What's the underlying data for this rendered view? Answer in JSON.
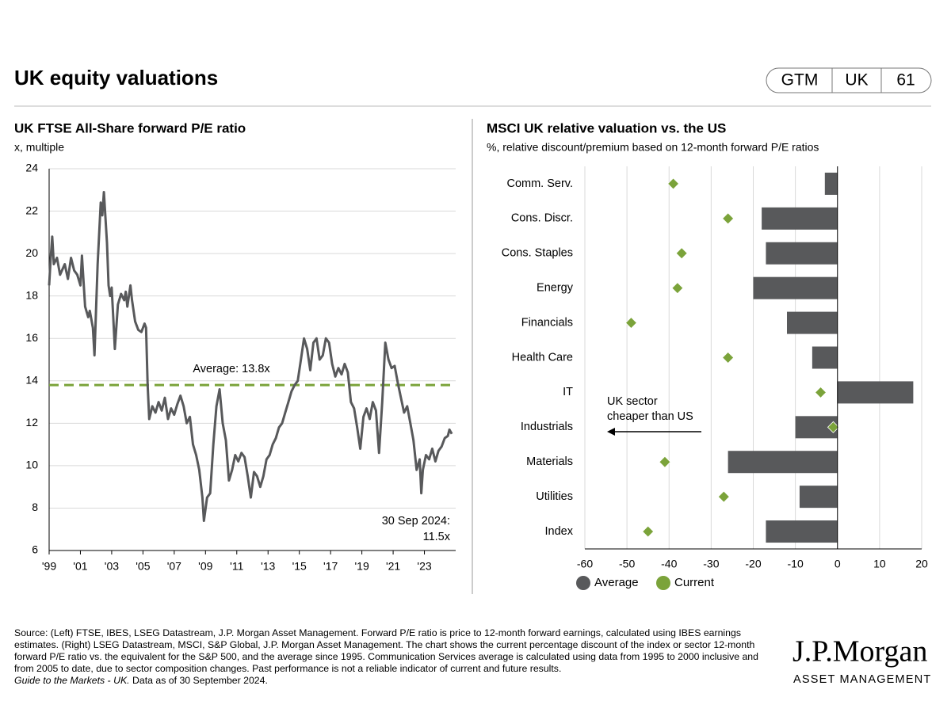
{
  "header": {
    "title": "UK equity valuations",
    "badge": [
      "GTM",
      "UK",
      "61"
    ]
  },
  "chart_data": [
    {
      "type": "line",
      "title": "UK FTSE All-Share forward P/E ratio",
      "subtitle": "x, multiple",
      "color": "#58595b",
      "x": [
        1999.0,
        1999.1,
        1999.2,
        1999.3,
        1999.5,
        1999.7,
        2000.0,
        2000.2,
        2000.4,
        2000.6,
        2000.8,
        2001.0,
        2001.1,
        2001.3,
        2001.5,
        2001.6,
        2001.8,
        2001.9,
        2002.1,
        2002.3,
        2002.4,
        2002.5,
        2002.7,
        2002.8,
        2002.9,
        2003.0,
        2003.1,
        2003.2,
        2003.4,
        2003.6,
        2003.8,
        2003.9,
        2004.0,
        2004.2,
        2004.3,
        2004.5,
        2004.7,
        2004.9,
        2005.1,
        2005.2,
        2005.3,
        2005.4,
        2005.6,
        2005.8,
        2006.0,
        2006.2,
        2006.4,
        2006.6,
        2006.8,
        2007.0,
        2007.2,
        2007.4,
        2007.6,
        2007.8,
        2008.0,
        2008.2,
        2008.4,
        2008.6,
        2008.8,
        2008.9,
        2009.1,
        2009.3,
        2009.5,
        2009.7,
        2009.9,
        2010.1,
        2010.3,
        2010.5,
        2010.7,
        2010.9,
        2011.1,
        2011.3,
        2011.5,
        2011.7,
        2011.9,
        2012.1,
        2012.3,
        2012.5,
        2012.7,
        2012.9,
        2013.1,
        2013.3,
        2013.5,
        2013.7,
        2013.9,
        2014.1,
        2014.3,
        2014.5,
        2014.7,
        2014.9,
        2015.1,
        2015.3,
        2015.5,
        2015.7,
        2015.9,
        2016.1,
        2016.3,
        2016.5,
        2016.7,
        2016.9,
        2017.1,
        2017.3,
        2017.5,
        2017.7,
        2017.9,
        2018.1,
        2018.3,
        2018.5,
        2018.7,
        2018.9,
        2019.1,
        2019.3,
        2019.5,
        2019.7,
        2019.9,
        2020.1,
        2020.3,
        2020.5,
        2020.7,
        2020.9,
        2021.1,
        2021.3,
        2021.5,
        2021.7,
        2021.9,
        2022.1,
        2022.3,
        2022.5,
        2022.7,
        2022.8,
        2022.9,
        2023.1,
        2023.3,
        2023.5,
        2023.7,
        2023.9,
        2024.1,
        2024.3,
        2024.5,
        2024.6,
        2024.75
      ],
      "values": [
        18.5,
        19.8,
        20.8,
        19.5,
        19.8,
        19.0,
        19.5,
        18.8,
        19.8,
        19.2,
        19.0,
        18.5,
        19.9,
        17.5,
        17.0,
        17.3,
        16.5,
        15.2,
        19.5,
        22.4,
        21.8,
        22.9,
        20.5,
        18.5,
        18.0,
        18.4,
        17.0,
        15.5,
        17.6,
        18.1,
        17.8,
        18.2,
        17.5,
        18.5,
        17.8,
        16.8,
        16.4,
        16.3,
        16.7,
        16.5,
        13.8,
        12.2,
        12.8,
        12.5,
        13.0,
        12.6,
        13.2,
        12.2,
        12.7,
        12.4,
        12.9,
        13.3,
        12.8,
        12.0,
        12.3,
        11.0,
        10.5,
        9.8,
        8.5,
        7.4,
        8.5,
        8.7,
        11.0,
        12.8,
        13.6,
        12.0,
        11.2,
        9.3,
        9.8,
        10.5,
        10.2,
        10.6,
        10.4,
        9.5,
        8.5,
        9.7,
        9.5,
        9.0,
        9.5,
        10.3,
        10.5,
        11.0,
        11.3,
        11.8,
        12.0,
        12.5,
        13.0,
        13.5,
        13.8,
        14.0,
        15.0,
        16.0,
        15.5,
        14.5,
        15.8,
        16.0,
        15.0,
        15.2,
        16.0,
        15.8,
        14.8,
        14.2,
        14.6,
        14.3,
        14.8,
        14.4,
        13.0,
        12.7,
        11.8,
        10.8,
        12.3,
        12.7,
        12.2,
        13.0,
        12.6,
        10.6,
        13.0,
        15.8,
        15.0,
        14.6,
        14.7,
        13.9,
        13.2,
        12.5,
        12.8,
        12.0,
        11.2,
        9.8,
        10.3,
        8.7,
        9.8,
        10.5,
        10.3,
        10.8,
        10.2,
        10.7,
        10.9,
        11.3,
        11.4,
        11.7,
        11.5
      ],
      "xlim": [
        1999,
        2025
      ],
      "xticks": [
        {
          "value": 1999,
          "label": "'99"
        },
        {
          "value": 2001,
          "label": "'01"
        },
        {
          "value": 2003,
          "label": "'03"
        },
        {
          "value": 2005,
          "label": "'05"
        },
        {
          "value": 2007,
          "label": "'07"
        },
        {
          "value": 2009,
          "label": "'09"
        },
        {
          "value": 2011,
          "label": "'11"
        },
        {
          "value": 2013,
          "label": "'13"
        },
        {
          "value": 2015,
          "label": "'15"
        },
        {
          "value": 2017,
          "label": "'17"
        },
        {
          "value": 2019,
          "label": "'19"
        },
        {
          "value": 2021,
          "label": "'21"
        },
        {
          "value": 2023,
          "label": "'23"
        }
      ],
      "ylim": [
        6,
        24
      ],
      "yticks": [
        6,
        8,
        10,
        12,
        14,
        16,
        18,
        20,
        22,
        24
      ],
      "grid": true,
      "average": {
        "value": 13.8,
        "label": "Average: 13.8x",
        "color": "#7ba33a"
      },
      "annotation": {
        "x": 2024.75,
        "y": 11.5,
        "lines": [
          "30 Sep 2024:",
          "11.5x"
        ]
      }
    },
    {
      "type": "bar",
      "orientation": "horizontal",
      "title": "MSCI UK relative valuation vs. the US",
      "subtitle": "%, relative discount/premium based on 12-month forward P/E ratios",
      "categories": [
        "Comm. Serv.",
        "Cons. Discr.",
        "Cons. Staples",
        "Energy",
        "Financials",
        "Health Care",
        "IT",
        "Industrials",
        "Materials",
        "Utilities",
        "Index"
      ],
      "series": [
        {
          "name": "Average",
          "color": "#58595b",
          "marker": "bar",
          "values": [
            -3,
            -18,
            -17,
            -20,
            -12,
            -6,
            18,
            -10,
            -26,
            -9,
            -17
          ]
        },
        {
          "name": "Current",
          "color": "#7ba33a",
          "marker": "diamond",
          "values": [
            -39,
            -26,
            -37,
            -38,
            -49,
            -26,
            -4,
            -1,
            -41,
            -27,
            -45
          ]
        }
      ],
      "xlim": [
        -60,
        20
      ],
      "xticks": [
        -60,
        -50,
        -40,
        -30,
        -20,
        -10,
        0,
        10,
        20
      ],
      "grid": true,
      "annotation": {
        "lines": [
          "UK sector",
          "cheaper than US"
        ]
      }
    }
  ],
  "footer": {
    "source": "Source: (Left) FTSE, IBES, LSEG Datastream, J.P. Morgan Asset Management. Forward P/E ratio is price to 12-month forward earnings, calculated using IBES earnings estimates. (Right) LSEG Datastream, MSCI, S&P Global, J.P. Morgan Asset Management. The chart shows the current percentage discount of the index or sector 12-month forward P/E ratio vs. the equivalent for the S&P 500, and the average since 1995. Communication Services average is calculated using data from 1995 to 2000 inclusive and from 2005 to date, due to sector composition changes. Past performance is not a reliable indicator of current and future results.",
    "guide": "Guide to the Markets - UK.",
    "asof": "Data as of 30 September 2024."
  },
  "logo": {
    "name": "J.P.Morgan",
    "tagline": "ASSET MANAGEMENT"
  }
}
